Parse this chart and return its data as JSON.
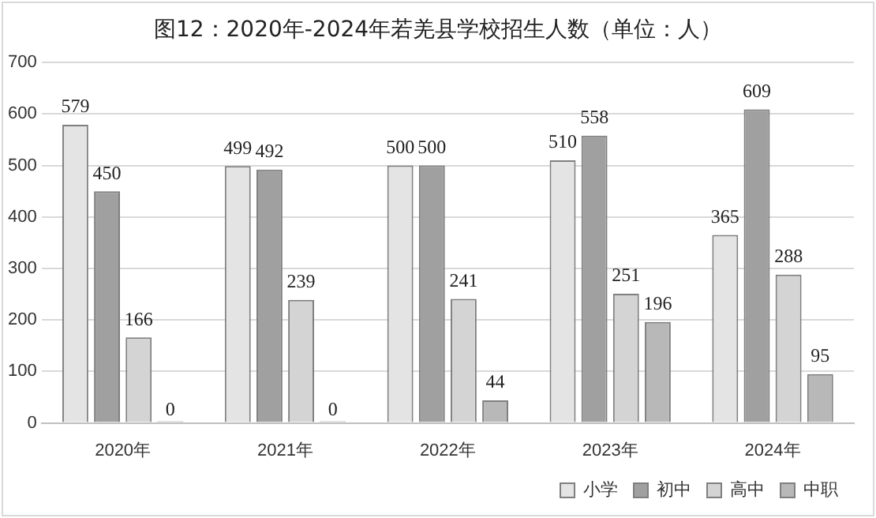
{
  "chart_data": {
    "type": "bar",
    "title": "图12：2020年-2024年若羌县学校招生人数（单位：人）",
    "categories": [
      "2020年",
      "2021年",
      "2022年",
      "2023年",
      "2024年"
    ],
    "series": [
      {
        "name": "小学",
        "color": "#e4e4e4",
        "values": [
          579,
          499,
          500,
          510,
          365
        ]
      },
      {
        "name": "初中",
        "color": "#a0a0a0",
        "values": [
          450,
          492,
          500,
          558,
          609
        ]
      },
      {
        "name": "高中",
        "color": "#d4d4d4",
        "values": [
          166,
          239,
          241,
          251,
          288
        ]
      },
      {
        "name": "中职",
        "color": "#b8b8b8",
        "values": [
          0,
          0,
          44,
          196,
          95
        ]
      }
    ],
    "ylim": [
      0,
      700
    ],
    "yticks": [
      0,
      100,
      200,
      300,
      400,
      500,
      600,
      700
    ],
    "grid": "y",
    "legend": "bottom right",
    "data_labels": true
  }
}
